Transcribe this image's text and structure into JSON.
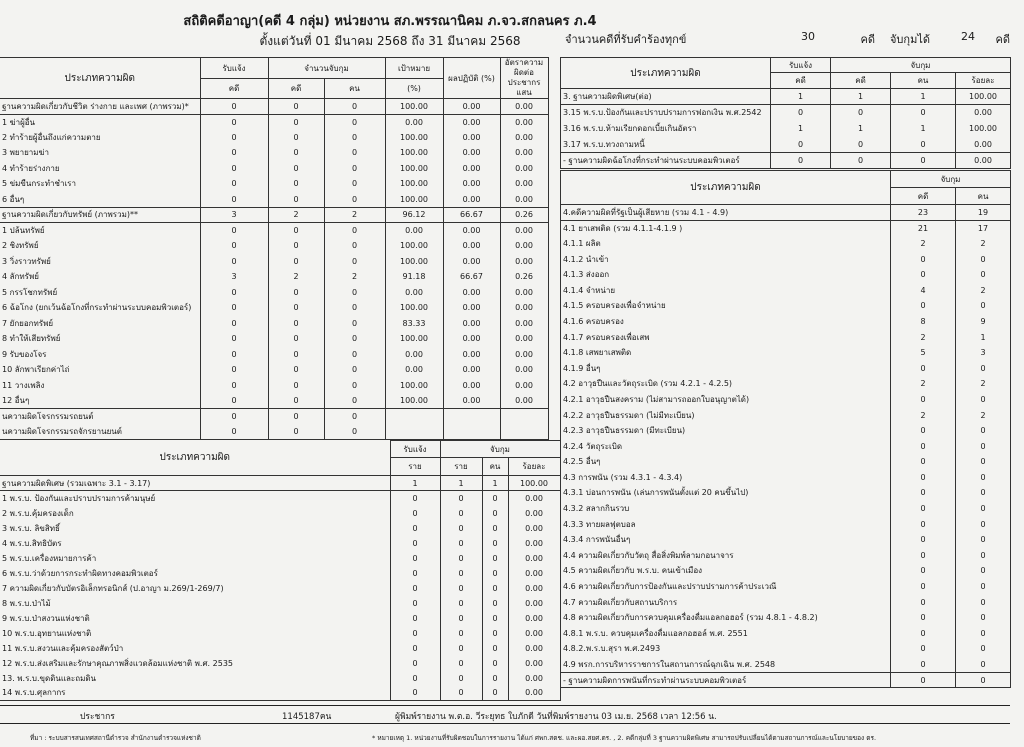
{
  "header": {
    "title": "สถิติคดีอาญา(คดี 4 กลุ่ม) หน่วยงาน สภ.พรรณานิคม ภ.จว.สกลนคร ภ.4",
    "subtitle": "ตั้งแต่วันที่ 01 มีนาคม 2568 ถึง 31 มีนาคม 2568",
    "complaints_label": "จำนวนคดีที่รับคำร้องทุกข์",
    "complaints_value": "30",
    "case_unit": "คดี",
    "arrested_label": "จับกุมได้",
    "arrested_value": "24",
    "case_unit2": "คดี"
  },
  "table1": {
    "headers": {
      "type": "ประเภทความผิด",
      "reported": "รับแจ้ง",
      "arrested": "จำนวนจับกุม",
      "target": "เป้าหมาย",
      "result": "ผลปฏิบัติ (%)",
      "rate": "อัตราความผิดต่อประชากรแสน",
      "case": "คดี",
      "case2": "คดี",
      "person": "คน",
      "pct": "(%)"
    },
    "rows": [
      [
        "ฐานความผิดเกี่ยวกับชีวิต ร่างกาย และเพศ (ภาพรวม)*",
        "0",
        "0",
        "0",
        "100.00",
        "0.00",
        "0.00"
      ],
      [
        "1 ฆ่าผู้อื่น",
        "0",
        "0",
        "0",
        "0.00",
        "0.00",
        "0.00"
      ],
      [
        "2 ทำร้ายผู้อื่นถึงแก่ความตาย",
        "0",
        "0",
        "0",
        "100.00",
        "0.00",
        "0.00"
      ],
      [
        "3 พยายามฆ่า",
        "0",
        "0",
        "0",
        "100.00",
        "0.00",
        "0.00"
      ],
      [
        "4 ทำร้ายร่างกาย",
        "0",
        "0",
        "0",
        "100.00",
        "0.00",
        "0.00"
      ],
      [
        "5 ข่มขืนกระทำชำเรา",
        "0",
        "0",
        "0",
        "100.00",
        "0.00",
        "0.00"
      ],
      [
        "6 อื่นๆ",
        "0",
        "0",
        "0",
        "100.00",
        "0.00",
        "0.00"
      ],
      [
        "ฐานความผิดเกี่ยวกับทรัพย์ (ภาพรวม)**",
        "3",
        "2",
        "2",
        "96.12",
        "66.67",
        "0.26"
      ],
      [
        "1 ปล้นทรัพย์",
        "0",
        "0",
        "0",
        "0.00",
        "0.00",
        "0.00"
      ],
      [
        "2 ชิงทรัพย์",
        "0",
        "0",
        "0",
        "100.00",
        "0.00",
        "0.00"
      ],
      [
        "3 วิ่งราวทรัพย์",
        "0",
        "0",
        "0",
        "100.00",
        "0.00",
        "0.00"
      ],
      [
        "4 ลักทรัพย์",
        "3",
        "2",
        "2",
        "91.18",
        "66.67",
        "0.26"
      ],
      [
        "5 กรรโชกทรัพย์",
        "0",
        "0",
        "0",
        "0.00",
        "0.00",
        "0.00"
      ],
      [
        "6 ฉ้อโกง (ยกเว้นฉ้อโกงที่กระทำผ่านระบบคอมพิวเตอร์)",
        "0",
        "0",
        "0",
        "100.00",
        "0.00",
        "0.00"
      ],
      [
        "7 ยักยอกทรัพย์",
        "0",
        "0",
        "0",
        "83.33",
        "0.00",
        "0.00"
      ],
      [
        "8 ทำให้เสียทรัพย์",
        "0",
        "0",
        "0",
        "100.00",
        "0.00",
        "0.00"
      ],
      [
        "9 รับของโจร",
        "0",
        "0",
        "0",
        "0.00",
        "0.00",
        "0.00"
      ],
      [
        "10 ลักพาเรียกค่าไถ่",
        "0",
        "0",
        "0",
        "0.00",
        "0.00",
        "0.00"
      ],
      [
        "11 วางเพลิง",
        "0",
        "0",
        "0",
        "100.00",
        "0.00",
        "0.00"
      ],
      [
        "12 อื่นๆ",
        "0",
        "0",
        "0",
        "100.00",
        "0.00",
        "0.00"
      ],
      [
        "นความผิดโจรกรรมรถยนต์",
        "0",
        "0",
        "0",
        "",
        "",
        ""
      ],
      [
        "นความผิดโจรกรรมรถจักรยานยนต์",
        "0",
        "0",
        "0",
        "",
        "",
        ""
      ]
    ]
  },
  "table2": {
    "headers": {
      "type": "ประเภทความผิด",
      "reported": "รับแจ้ง",
      "arrested": "จับกุม",
      "r1": "ราย",
      "r2": "ราย",
      "person": "คน",
      "pct": "ร้อยละ"
    },
    "rows": [
      [
        "ฐานความผิดพิเศษ (รวมเฉพาะ 3.1 - 3.17)",
        "1",
        "1",
        "1",
        "100.00"
      ],
      [
        "1 พ.ร.บ. ป้องกันและปราบปรามการค้ามนุษย์",
        "0",
        "0",
        "0",
        "0.00"
      ],
      [
        "2 พ.ร.บ.คุ้มครองเด็ก",
        "0",
        "0",
        "0",
        "0.00"
      ],
      [
        "3 พ.ร.บ. ลิขสิทธิ์",
        "0",
        "0",
        "0",
        "0.00"
      ],
      [
        "4 พ.ร.บ.สิทธิบัตร",
        "0",
        "0",
        "0",
        "0.00"
      ],
      [
        "5 พ.ร.บ.เครื่องหมายการค้า",
        "0",
        "0",
        "0",
        "0.00"
      ],
      [
        "6 พ.ร.บ.ว่าด้วยการกระทำผิดทางคอมพิวเตอร์",
        "0",
        "0",
        "0",
        "0.00"
      ],
      [
        "7 ความผิดเกี่ยวกับบัตรอิเล็กทรอนิกส์ (ป.อาญา ม.269/1-269/7)",
        "0",
        "0",
        "0",
        "0.00"
      ],
      [
        "8 พ.ร.บ.ป่าไม้",
        "0",
        "0",
        "0",
        "0.00"
      ],
      [
        "9 พ.ร.บ.ป่าสงวนแห่งชาติ",
        "0",
        "0",
        "0",
        "0.00"
      ],
      [
        "10 พ.ร.บ.อุทยานแห่งชาติ",
        "0",
        "0",
        "0",
        "0.00"
      ],
      [
        "11 พ.ร.บ.สงวนและคุ้มครองสัตว์ป่า",
        "0",
        "0",
        "0",
        "0.00"
      ],
      [
        "12 พ.ร.บ.ส่งเสริมและรักษาคุณภาพสิ่งแวดล้อมแห่งชาติ พ.ศ. 2535",
        "0",
        "0",
        "0",
        "0.00"
      ],
      [
        "13. พ.ร.บ.ขุดดินและถมดิน",
        "0",
        "0",
        "0",
        "0.00"
      ],
      [
        "14 พ.ร.บ.ศุลกากร",
        "0",
        "0",
        "0",
        "0.00"
      ]
    ]
  },
  "table3": {
    "headers": {
      "type": "ประเภทความผิด",
      "reported": "รับแจ้ง",
      "arrested": "จับกุม",
      "case": "คดี",
      "case2": "คดี",
      "person": "คน",
      "pct": "ร้อยละ"
    },
    "rows": [
      [
        "3. ฐานความผิดพิเศษ(ต่อ)",
        "1",
        "1",
        "1",
        "100.00"
      ],
      [
        "3.15 พ.ร.บ.ป้องกันและปราบปรามการฟอกเงิน พ.ศ.2542",
        "0",
        "0",
        "0",
        "0.00"
      ],
      [
        "3.16 พ.ร.บ.ห้ามเรียกดอกเบี้ยเกินอัตรา",
        "1",
        "1",
        "1",
        "100.00"
      ],
      [
        "3.17 พ.ร.บ.ทวงถามหนี้",
        "0",
        "0",
        "0",
        "0.00"
      ],
      [
        "- ฐานความผิดฉ้อโกงที่กระทำผ่านระบบคอมพิวเตอร์",
        "0",
        "0",
        "0",
        "0.00"
      ]
    ]
  },
  "table4": {
    "headers": {
      "type": "ประเภทความผิด",
      "arrested": "จับกุม",
      "case": "คดี",
      "person": "คน"
    },
    "rows": [
      [
        "4.คดีความผิดที่รัฐเป็นผู้เสียหาย (รวม 4.1 - 4.9)",
        "23",
        "19"
      ],
      [
        "4.1 ยาเสพติด (รวม 4.1.1-4.1.9 )",
        "21",
        "17"
      ],
      [
        "4.1.1 ผลิต",
        "2",
        "2"
      ],
      [
        "4.1.2 นำเข้า",
        "0",
        "0"
      ],
      [
        "4.1.3 ส่งออก",
        "0",
        "0"
      ],
      [
        "4.1.4 จำหน่าย",
        "4",
        "2"
      ],
      [
        "4.1.5 ครอบครองเพื่อจำหน่าย",
        "0",
        "0"
      ],
      [
        "4.1.6 ครอบครอง",
        "8",
        "9"
      ],
      [
        "4.1.7 ครอบครองเพื่อเสพ",
        "2",
        "1"
      ],
      [
        "4.1.8 เสพยาเสพติด",
        "5",
        "3"
      ],
      [
        "4.1.9 อื่นๆ",
        "0",
        "0"
      ],
      [
        "4.2 อาวุธปืนและวัตถุระเบิด (รวม 4.2.1 - 4.2.5)",
        "2",
        "2"
      ],
      [
        "4.2.1 อาวุธปืนสงคราม (ไม่สามารถออกใบอนุญาตได้)",
        "0",
        "0"
      ],
      [
        "4.2.2 อาวุธปืนธรรมดา (ไม่มีทะเบียน)",
        "2",
        "2"
      ],
      [
        "4.2.3 อาวุธปืนธรรมดา (มีทะเบียน)",
        "0",
        "0"
      ],
      [
        "4.2.4 วัตถุระเบิด",
        "0",
        "0"
      ],
      [
        "4.2.5 อื่นๆ",
        "0",
        "0"
      ],
      [
        "4.3 การพนัน (รวม 4.3.1 - 4.3.4)",
        "0",
        "0"
      ],
      [
        "4.3.1 บ่อนการพนัน (เล่นการพนันตั้งแต่ 20 คนขึ้นไป)",
        "0",
        "0"
      ],
      [
        "4.3.2 สลากกินรวบ",
        "0",
        "0"
      ],
      [
        "4.3.3 ทายผลฟุตบอล",
        "0",
        "0"
      ],
      [
        "4.3.4 การพนันอื่นๆ",
        "0",
        "0"
      ],
      [
        "4.4 ความผิดเกี่ยวกับวัตถุ สื่อสิ่งพิมพ์ลามกอนาจาร",
        "0",
        "0"
      ],
      [
        "4.5 ความผิดเกี่ยวกับ พ.ร.บ. คนเข้าเมือง",
        "0",
        "0"
      ],
      [
        "4.6 ความผิดเกี่ยวกับการป้องกันและปราบปรามการค้าประเวณี",
        "0",
        "0"
      ],
      [
        "4.7 ความผิดเกี่ยวกับสถานบริการ",
        "0",
        "0"
      ],
      [
        "4.8 ความผิดเกี่ยวกับการควบคุมเครื่องดื่มแอลกอฮอร์ (รวม 4.8.1 - 4.8.2)",
        "0",
        "0"
      ],
      [
        "4.8.1 พ.ร.บ. ควบคุมเครื่องดื่มแอลกอฮอล์ พ.ศ. 2551",
        "0",
        "0"
      ],
      [
        "4.8.2.พ.ร.บ.สุรา พ.ศ.2493",
        "0",
        "0"
      ],
      [
        "4.9 พรก.การบริหารราชการในสถานการณ์ฉุกเฉิน พ.ศ. 2548",
        "0",
        "0"
      ],
      [
        "- ฐานความผิดการพนันที่กระทำผ่านระบบคอมพิวเตอร์",
        "0",
        "0"
      ]
    ]
  },
  "footer": {
    "population_label": "ประชากร",
    "population_value": "1145187คน",
    "printed_by": "ผู้พิมพ์รายงาน พ.ต.อ. วีระยุทธ ใบภักดี วันที่พิมพ์รายงาน 03 เม.ย. 2568  เวลา 12:56 น.",
    "source": "ที่มา : ระบบสารสนเทศสถานีตำรวจ  สำนักงานตำรวจแห่งชาติ",
    "remark": "* หมายเหตุ   1. หน่วยงานที่รับผิดชอบในการรายงาน ได้แก่ ศพก.สตช. และผอ.สยศ.ตร. , 2. คดีกลุ่มที่ 3 ฐานความผิดพิเศษ สามารถปรับเปลี่ยนได้ตามสถานการณ์และนโยบายของ ตร."
  }
}
